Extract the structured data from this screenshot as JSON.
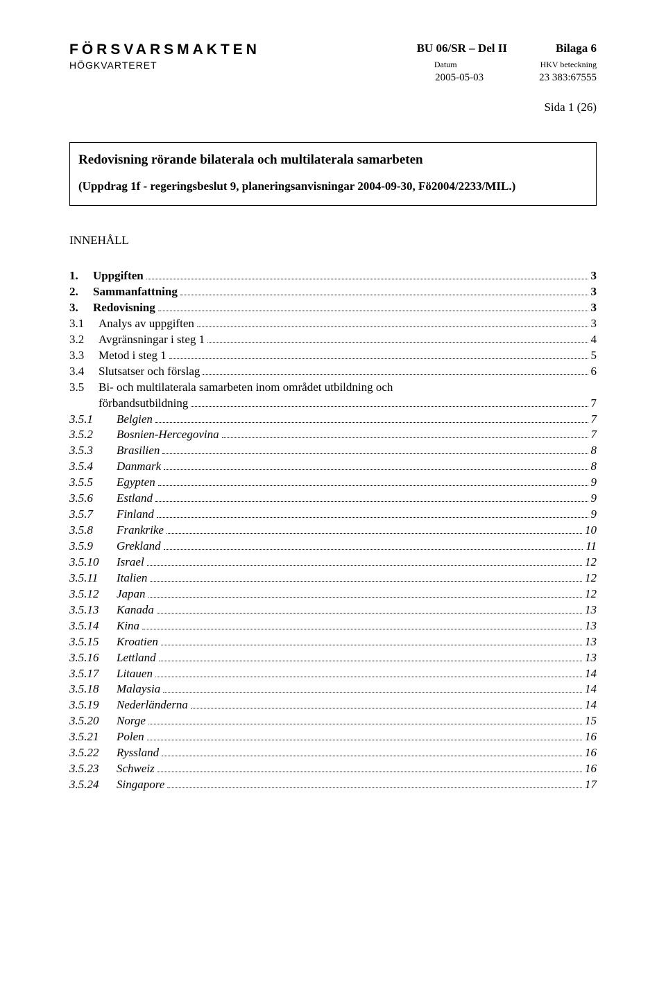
{
  "header": {
    "logo": "FÖRSVARSMAKTEN",
    "sublogo": "HÖGKVARTERET",
    "col1_line1": "BU 06/SR – Del II",
    "col1_line2": "Datum",
    "col1_line3": "2005-05-03",
    "col2_line1": "Bilaga 6",
    "col2_line2": "HKV beteckning",
    "col2_line3": "23 383:67555",
    "page": "Sida 1 (26)"
  },
  "titleBox": {
    "main": "Redovisning rörande bilaterala och multilaterala samarbeten",
    "sub": "(Uppdrag 1f - regeringsbeslut 9, planeringsanvisningar 2004-09-30, Fö2004/2233/MIL.)"
  },
  "tocHeading": "INNEHÅLL",
  "toc": [
    {
      "level": 1,
      "bold": true,
      "num": "1.",
      "title": "Uppgiften",
      "page": "3"
    },
    {
      "level": 1,
      "bold": true,
      "num": "2.",
      "title": "Sammanfattning",
      "page": "3"
    },
    {
      "level": 1,
      "bold": true,
      "num": "3.",
      "title": "Redovisning",
      "page": "3"
    },
    {
      "level": 2,
      "num": "3.1",
      "title": "Analys av uppgiften",
      "page": "3"
    },
    {
      "level": 2,
      "num": "3.2",
      "title": "Avgränsningar i steg 1",
      "page": "4"
    },
    {
      "level": 2,
      "num": "3.3",
      "title": "Metod i steg 1",
      "page": "5"
    },
    {
      "level": 2,
      "num": "3.4",
      "title": "Slutsatser och förslag",
      "page": "6"
    },
    {
      "level": 2,
      "num": "3.5",
      "title": "Bi- och multilaterala samarbeten inom området utbildning och förbandsutbildning",
      "page": "7",
      "wrap": true
    },
    {
      "level": 3,
      "italic": true,
      "num": "3.5.1",
      "title": "Belgien",
      "page": "7"
    },
    {
      "level": 3,
      "italic": true,
      "num": "3.5.2",
      "title": "Bosnien-Hercegovina",
      "page": "7"
    },
    {
      "level": 3,
      "italic": true,
      "num": "3.5.3",
      "title": "Brasilien",
      "page": "8"
    },
    {
      "level": 3,
      "italic": true,
      "num": "3.5.4",
      "title": "Danmark",
      "page": "8"
    },
    {
      "level": 3,
      "italic": true,
      "num": "3.5.5",
      "title": "Egypten",
      "page": "9"
    },
    {
      "level": 3,
      "italic": true,
      "num": "3.5.6",
      "title": "Estland",
      "page": "9"
    },
    {
      "level": 3,
      "italic": true,
      "num": "3.5.7",
      "title": "Finland",
      "page": "9"
    },
    {
      "level": 3,
      "italic": true,
      "num": "3.5.8",
      "title": "Frankrike",
      "page": "10"
    },
    {
      "level": 3,
      "italic": true,
      "num": "3.5.9",
      "title": "Grekland",
      "page": "11"
    },
    {
      "level": 3,
      "italic": true,
      "num": "3.5.10",
      "title": "Israel",
      "page": "12"
    },
    {
      "level": 3,
      "italic": true,
      "num": "3.5.11",
      "title": "Italien",
      "page": "12"
    },
    {
      "level": 3,
      "italic": true,
      "num": "3.5.12",
      "title": "Japan",
      "page": "12"
    },
    {
      "level": 3,
      "italic": true,
      "num": "3.5.13",
      "title": "Kanada",
      "page": "13"
    },
    {
      "level": 3,
      "italic": true,
      "num": "3.5.14",
      "title": "Kina",
      "page": "13"
    },
    {
      "level": 3,
      "italic": true,
      "num": "3.5.15",
      "title": "Kroatien",
      "page": "13"
    },
    {
      "level": 3,
      "italic": true,
      "num": "3.5.16",
      "title": "Lettland",
      "page": "13"
    },
    {
      "level": 3,
      "italic": true,
      "num": "3.5.17",
      "title": "Litauen",
      "page": "14"
    },
    {
      "level": 3,
      "italic": true,
      "num": "3.5.18",
      "title": "Malaysia",
      "page": "14"
    },
    {
      "level": 3,
      "italic": true,
      "num": "3.5.19",
      "title": "Nederländerna",
      "page": "14"
    },
    {
      "level": 3,
      "italic": true,
      "num": "3.5.20",
      "title": "Norge",
      "page": "15"
    },
    {
      "level": 3,
      "italic": true,
      "num": "3.5.21",
      "title": "Polen",
      "page": "16"
    },
    {
      "level": 3,
      "italic": true,
      "num": "3.5.22",
      "title": "Ryssland",
      "page": "16"
    },
    {
      "level": 3,
      "italic": true,
      "num": "3.5.23",
      "title": "Schweiz",
      "page": "16"
    },
    {
      "level": 3,
      "italic": true,
      "num": "3.5.24",
      "title": "Singapore",
      "page": "17"
    }
  ]
}
